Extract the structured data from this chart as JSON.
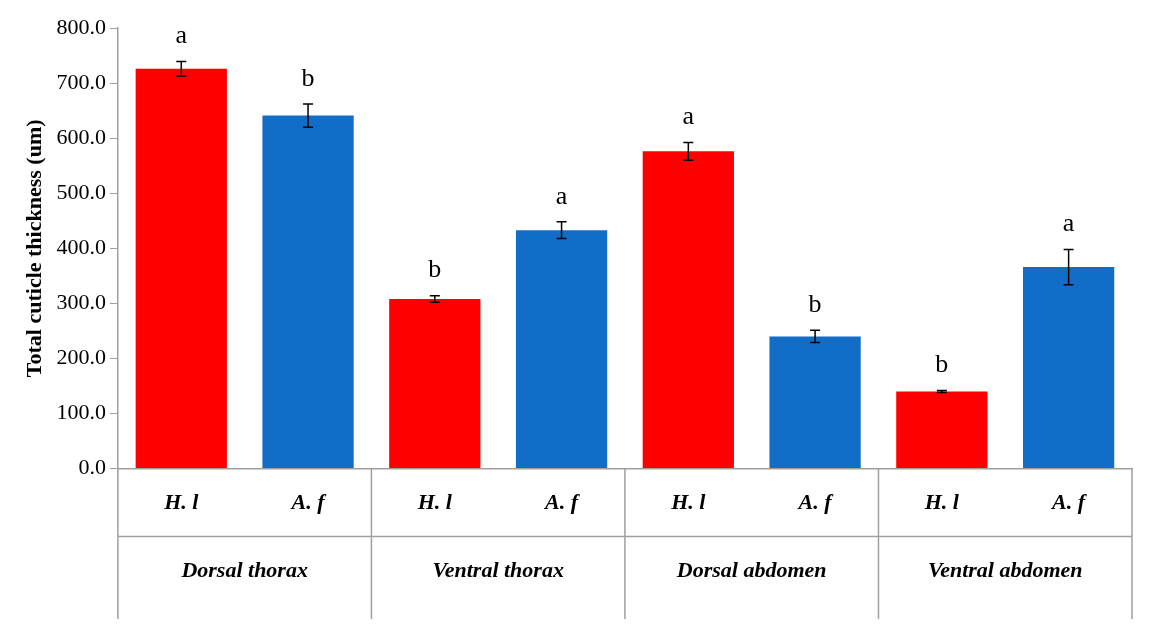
{
  "chart_data": {
    "type": "bar",
    "ylabel": "Total cuticle thickness (um)",
    "categories": [
      "H. l",
      "A. f",
      "H. l",
      "A. f",
      "H. l",
      "A. f",
      "H. l",
      "A. f"
    ],
    "values": [
      726,
      641,
      308,
      433,
      576,
      240,
      140,
      366
    ],
    "colors": [
      "#ff0000",
      "#116dc6",
      "#ff0000",
      "#116dc6",
      "#ff0000",
      "#116dc6",
      "#ff0000",
      "#116dc6"
    ],
    "errors": [
      13,
      21,
      6,
      15,
      16,
      11,
      2,
      32
    ],
    "value_labels": [
      "a",
      "b",
      "b",
      "a",
      "a",
      "b",
      "b",
      "a"
    ],
    "annotations": [
      "Dorsal thorax",
      "Ventral thorax",
      "Dorsal abdomen",
      "Ventral abdomen"
    ],
    "ylim": [
      0,
      800
    ],
    "yticks": [
      {
        "value": 0,
        "label": "0.0"
      },
      {
        "value": 100,
        "label": "100.0"
      },
      {
        "value": 200,
        "label": "200.0"
      },
      {
        "value": 300,
        "label": "300.0"
      },
      {
        "value": 400,
        "label": "400.0"
      },
      {
        "value": 500,
        "label": "500.0"
      },
      {
        "value": 600,
        "label": "600.0"
      },
      {
        "value": 700,
        "label": "700.0"
      },
      {
        "value": 800,
        "label": "800.0"
      }
    ],
    "grid": false,
    "legend": false
  }
}
